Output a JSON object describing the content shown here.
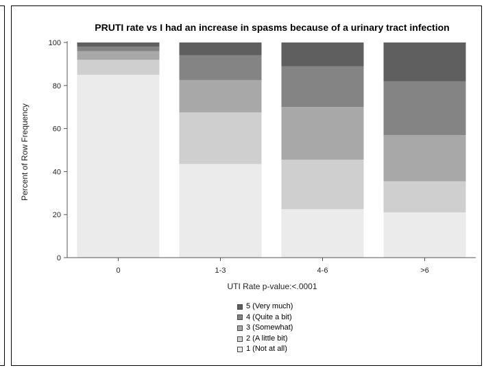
{
  "chart_data": {
    "type": "bar",
    "stacked": true,
    "title": "PRUTI rate vs I had an increase in spasms because of a urinary tract infection",
    "xlabel": "UTI Rate p-value:<.0001",
    "ylabel": "Percent of Row Frequency",
    "ylim": [
      0,
      100
    ],
    "yticks": [
      0,
      20,
      40,
      60,
      80,
      100
    ],
    "categories": [
      "0",
      "1-3",
      "4-6",
      ">6"
    ],
    "series": [
      {
        "name": "1 (Not at all)",
        "color": "#ebebeb",
        "values": [
          85,
          43.5,
          22.5,
          21
        ]
      },
      {
        "name": "2 (A little bit)",
        "color": "#cfcfcf",
        "values": [
          7,
          24,
          23,
          14.5
        ]
      },
      {
        "name": "3 (Somewhat)",
        "color": "#a8a8a8",
        "values": [
          4,
          15,
          24.5,
          21.5
        ]
      },
      {
        "name": "4 (Quite a bit)",
        "color": "#848484",
        "values": [
          2,
          11.5,
          19,
          25
        ]
      },
      {
        "name": "5 (Very much)",
        "color": "#5f5f5f",
        "values": [
          2,
          6,
          11,
          18
        ]
      }
    ],
    "legend_order": [
      4,
      3,
      2,
      1,
      0
    ],
    "legend_position": "bottom",
    "grid": false
  }
}
